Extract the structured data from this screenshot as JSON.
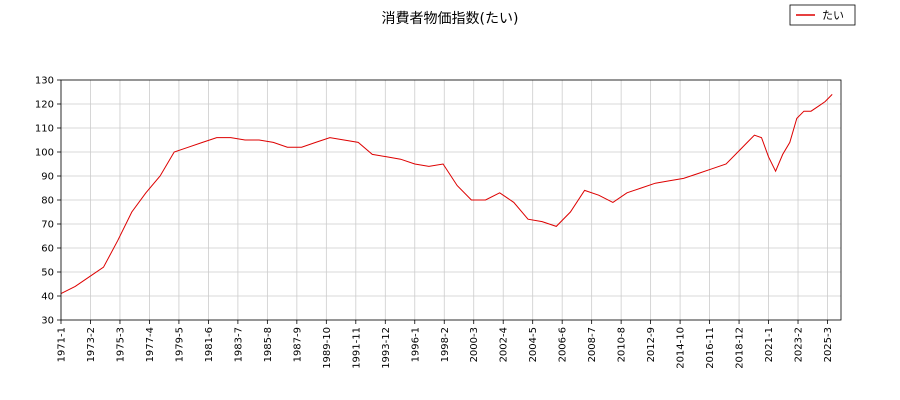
{
  "chart_data": {
    "type": "line",
    "title": "消費者物価指数(たい)",
    "xlabel": "",
    "ylabel": "",
    "ylim": [
      30,
      130
    ],
    "yticks": [
      30,
      40,
      50,
      60,
      70,
      80,
      90,
      100,
      110,
      120,
      130
    ],
    "xticks": [
      "1971-1",
      "1973-2",
      "1975-3",
      "1977-4",
      "1979-5",
      "1981-6",
      "1983-7",
      "1985-8",
      "1987-9",
      "1989-10",
      "1991-11",
      "1993-12",
      "1996-1",
      "1998-2",
      "2000-3",
      "2002-4",
      "2004-5",
      "2006-6",
      "2008-7",
      "2010-8",
      "2012-9",
      "2014-10",
      "2016-11",
      "2018-12",
      "2021-1",
      "2023-2",
      "2025-3"
    ],
    "grid": true,
    "legend": {
      "position": "top-right",
      "entries": [
        "たい"
      ]
    },
    "series": [
      {
        "name": "たい",
        "color": "#dd0000",
        "x": [
          "1971-1",
          "1972-1",
          "1973-1",
          "1974-1",
          "1975-1",
          "1976-1",
          "1977-1",
          "1978-1",
          "1979-1",
          "1980-1",
          "1981-1",
          "1982-1",
          "1983-1",
          "1984-1",
          "1985-1",
          "1986-1",
          "1987-1",
          "1988-1",
          "1989-1",
          "1990-1",
          "1991-1",
          "1992-1",
          "1993-1",
          "1994-1",
          "1995-1",
          "1996-1",
          "1997-1",
          "1998-1",
          "1999-1",
          "2000-1",
          "2001-1",
          "2002-1",
          "2003-1",
          "2004-1",
          "2005-1",
          "2006-1",
          "2007-1",
          "2008-1",
          "2009-1",
          "2010-1",
          "2011-1",
          "2012-1",
          "2013-1",
          "2014-1",
          "2015-1",
          "2016-1",
          "2017-1",
          "2018-1",
          "2019-1",
          "2019-7",
          "2020-1",
          "2020-7",
          "2021-1",
          "2021-7",
          "2022-1",
          "2022-7",
          "2023-1",
          "2023-7",
          "2024-1",
          "2024-7",
          "2025-1",
          "2025-7"
        ],
        "values": [
          41,
          44,
          48,
          52,
          63,
          75,
          83,
          90,
          100,
          102,
          104,
          106,
          106,
          105,
          105,
          104,
          102,
          102,
          104,
          106,
          105,
          104,
          99,
          98,
          97,
          95,
          94,
          95,
          86,
          80,
          80,
          83,
          79,
          72,
          71,
          69,
          75,
          84,
          82,
          79,
          83,
          85,
          87,
          88,
          89,
          91,
          93,
          95,
          101,
          104,
          107,
          106,
          98,
          92,
          99,
          104,
          114,
          117,
          117,
          119,
          121,
          124
        ]
      }
    ]
  }
}
